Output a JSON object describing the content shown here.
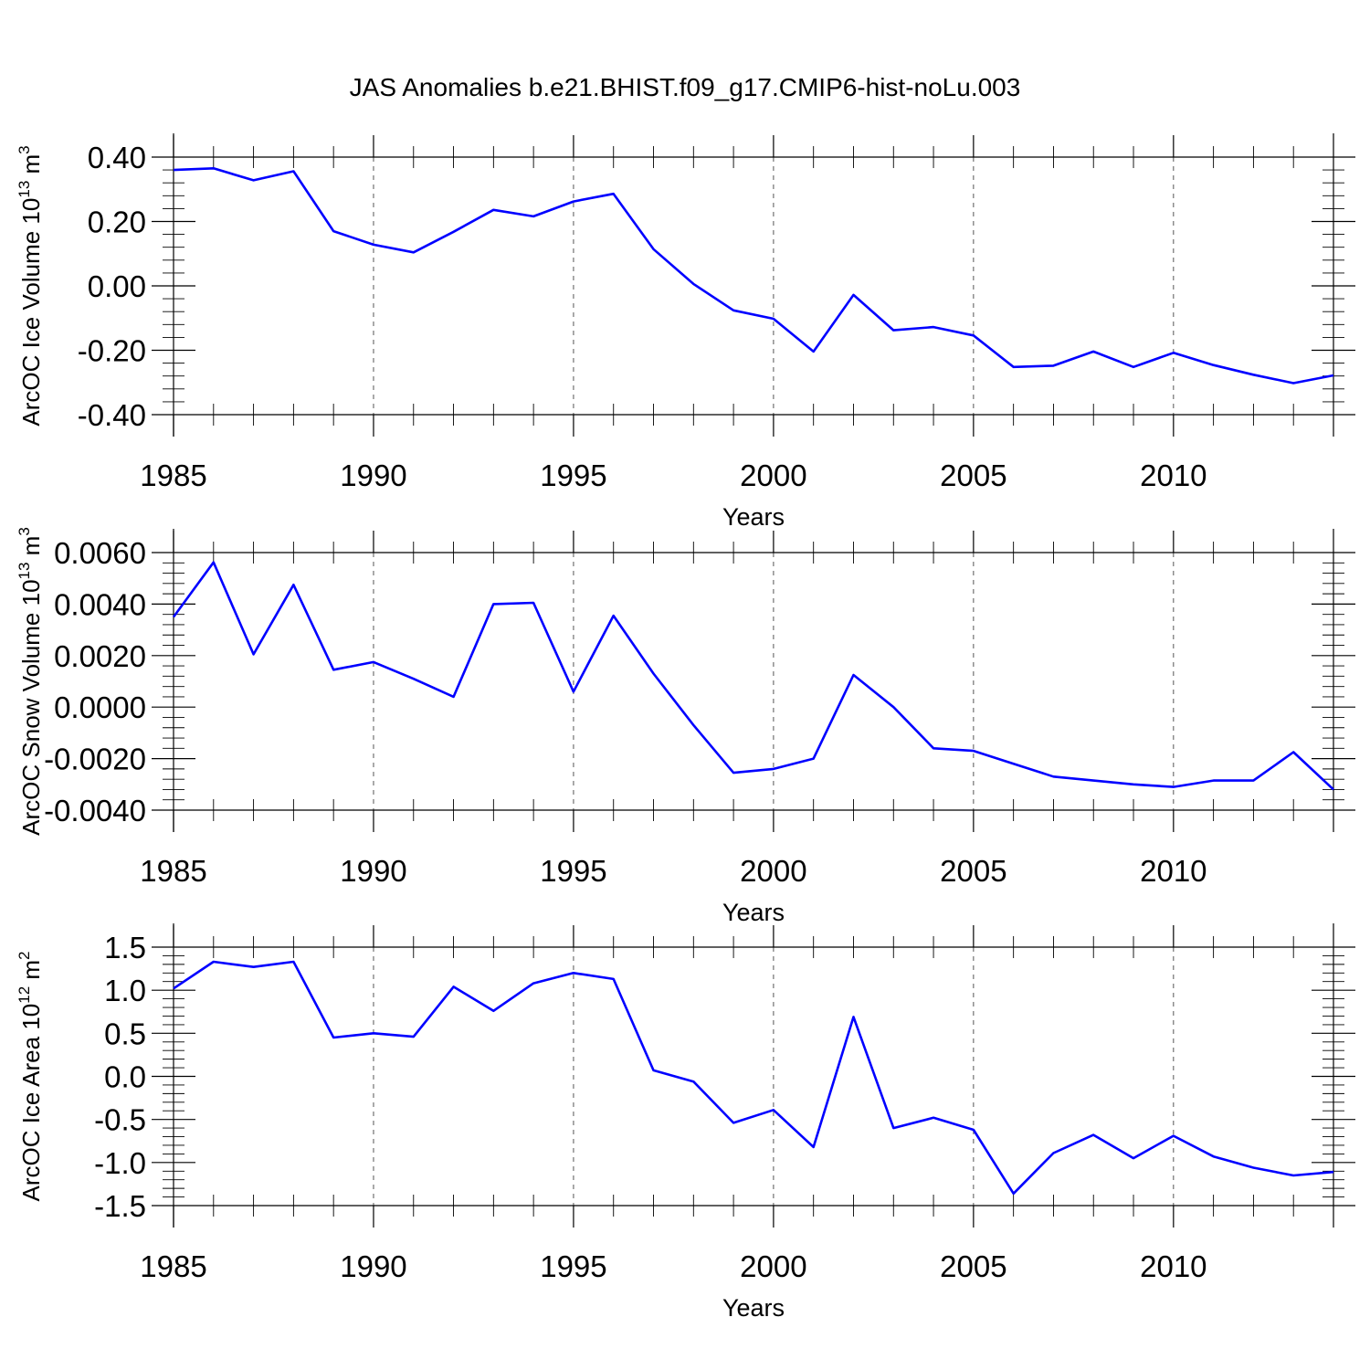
{
  "title": "JAS Anomalies b.e21.BHIST.f09_g17.CMIP6-hist-noLu.003",
  "line_color": "#0000ff",
  "chart_data": [
    {
      "type": "line",
      "ylabel": {
        "text": "ArcOC Ice Volume 10",
        "sup1": "13",
        "mid": " m",
        "sup2": "3"
      },
      "xlabel": "Years",
      "xlim": [
        1985,
        2014
      ],
      "ylim": [
        -0.4,
        0.4
      ],
      "yticks": [
        -0.4,
        -0.2,
        0.0,
        0.2,
        0.4
      ],
      "ytick_labels": [
        "-0.40",
        "-0.20",
        "0.00",
        "0.20",
        "0.40"
      ],
      "yminor_step": 0.04,
      "xticks": [
        1985,
        1990,
        1995,
        2000,
        2005,
        2010
      ],
      "xtick_labels": [
        "1985",
        "1990",
        "1995",
        "2000",
        "2005",
        "2010"
      ],
      "grid": "vertical dashed at major x ticks",
      "series": [
        {
          "name": "ArcOC Ice Volume anomaly",
          "x": [
            1985,
            1986,
            1987,
            1988,
            1989,
            1990,
            1991,
            1992,
            1993,
            1994,
            1995,
            1996,
            1997,
            1998,
            1999,
            2000,
            2001,
            2002,
            2003,
            2004,
            2005,
            2006,
            2007,
            2008,
            2009,
            2010,
            2011,
            2012,
            2013,
            2014
          ],
          "values": [
            0.36,
            0.365,
            0.328,
            0.356,
            0.17,
            0.128,
            0.104,
            0.168,
            0.236,
            0.216,
            0.262,
            0.286,
            0.114,
            0.006,
            -0.076,
            -0.102,
            -0.204,
            -0.028,
            -0.138,
            -0.128,
            -0.154,
            -0.252,
            -0.248,
            -0.204,
            -0.252,
            -0.208,
            -0.246,
            -0.276,
            -0.302,
            -0.278
          ]
        }
      ]
    },
    {
      "type": "line",
      "ylabel": {
        "text": "ArcOC Snow Volume 10",
        "sup1": "13",
        "mid": " m",
        "sup2": "3"
      },
      "xlabel": "Years",
      "xlim": [
        1985,
        2014
      ],
      "ylim": [
        -0.004,
        0.006
      ],
      "yticks": [
        -0.004,
        -0.002,
        0.0,
        0.002,
        0.004,
        0.006
      ],
      "ytick_labels": [
        "-0.0040",
        "-0.0020",
        "0.0000",
        "0.0020",
        "0.0040",
        "0.0060"
      ],
      "yminor_step": 0.0004,
      "xticks": [
        1985,
        1990,
        1995,
        2000,
        2005,
        2010
      ],
      "xtick_labels": [
        "1985",
        "1990",
        "1995",
        "2000",
        "2005",
        "2010"
      ],
      "grid": "vertical dashed at major x ticks",
      "series": [
        {
          "name": "ArcOC Snow Volume anomaly",
          "x": [
            1985,
            1986,
            1987,
            1988,
            1989,
            1990,
            1991,
            1992,
            1993,
            1994,
            1995,
            1996,
            1997,
            1998,
            1999,
            2000,
            2001,
            2002,
            2003,
            2004,
            2005,
            2006,
            2007,
            2008,
            2009,
            2010,
            2011,
            2012,
            2013,
            2014
          ],
          "values": [
            0.0035,
            0.00562,
            0.00205,
            0.00475,
            0.00145,
            0.00175,
            0.0011,
            0.0004,
            0.004,
            0.00405,
            0.0006,
            0.00355,
            0.0013,
            -0.0007,
            -0.00255,
            -0.0024,
            -0.002,
            0.00125,
            0.0,
            -0.0016,
            -0.0017,
            -0.0022,
            -0.0027,
            -0.00285,
            -0.003,
            -0.0031,
            -0.00285,
            -0.00285,
            -0.00175,
            -0.0032
          ]
        }
      ]
    },
    {
      "type": "line",
      "ylabel": {
        "text": "ArcOC Ice Area 10",
        "sup1": "12",
        "mid": " m",
        "sup2": "2"
      },
      "xlabel": "Years",
      "xlim": [
        1985,
        2014
      ],
      "ylim": [
        -1.5,
        1.5
      ],
      "yticks": [
        -1.5,
        -1.0,
        -0.5,
        0.0,
        0.5,
        1.0,
        1.5
      ],
      "ytick_labels": [
        "-1.5",
        "-1.0",
        "-0.5",
        "0.0",
        "0.5",
        "1.0",
        "1.5"
      ],
      "yminor_step": 0.1,
      "xticks": [
        1985,
        1990,
        1995,
        2000,
        2005,
        2010
      ],
      "xtick_labels": [
        "1985",
        "1990",
        "1995",
        "2000",
        "2005",
        "2010"
      ],
      "grid": "vertical dashed at major x ticks",
      "series": [
        {
          "name": "ArcOC Ice Area anomaly",
          "x": [
            1985,
            1986,
            1987,
            1988,
            1989,
            1990,
            1991,
            1992,
            1993,
            1994,
            1995,
            1996,
            1997,
            1998,
            1999,
            2000,
            2001,
            2002,
            2003,
            2004,
            2005,
            2006,
            2007,
            2008,
            2009,
            2010,
            2011,
            2012,
            2013,
            2014
          ],
          "values": [
            1.02,
            1.33,
            1.27,
            1.33,
            0.45,
            0.5,
            0.46,
            1.04,
            0.76,
            1.08,
            1.2,
            1.13,
            0.07,
            -0.06,
            -0.54,
            -0.39,
            -0.82,
            0.69,
            -0.6,
            -0.48,
            -0.62,
            -1.36,
            -0.89,
            -0.68,
            -0.95,
            -0.69,
            -0.93,
            -1.06,
            -1.15,
            -1.11
          ]
        }
      ]
    }
  ]
}
